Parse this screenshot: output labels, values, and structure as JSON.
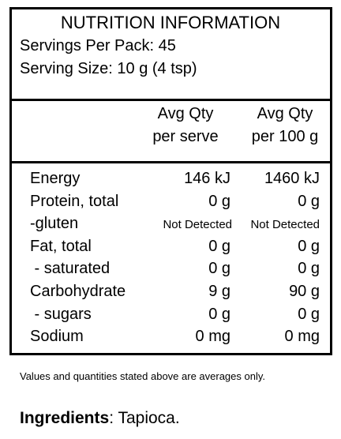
{
  "header": {
    "title": "NUTRITION INFORMATION",
    "servings": "Servings Per Pack: 45",
    "serving_size": "Serving Size: 10 g (4 tsp)"
  },
  "columns": [
    [
      "Avg Qty",
      "per serve"
    ],
    [
      "Avg Qty",
      "per 100 g"
    ]
  ],
  "table": {
    "rows": [
      [
        "Energy",
        "146 kJ",
        "1460 kJ"
      ],
      [
        "Protein, total",
        "0 g",
        "0 g"
      ],
      [
        "-gluten",
        "Not Detected",
        "Not Detected"
      ],
      [
        "Fat, total",
        "0 g",
        "0 g"
      ],
      [
        " - saturated",
        "0 g",
        "0 g"
      ],
      [
        "Carbohydrate",
        "9 g",
        "90 g"
      ],
      [
        " - sugars",
        "0 g",
        "0 g"
      ],
      [
        "Sodium",
        "0 mg",
        "0 mg"
      ]
    ]
  },
  "footnote": "Values and quantities stated above are averages only.",
  "ingredients": {
    "label": "Ingredients",
    "text": ": Tapioca."
  }
}
